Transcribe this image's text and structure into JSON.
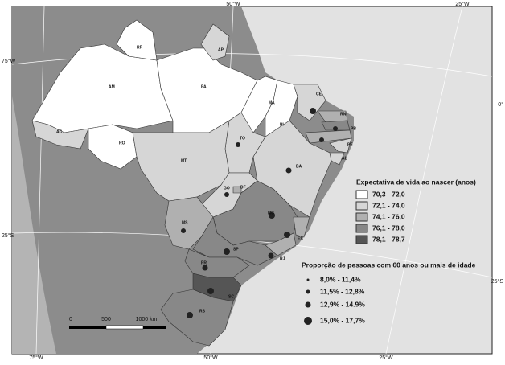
{
  "graticule_labels": [
    "50°W",
    "25°W",
    "75°W",
    "0°",
    "25°S",
    "25°S",
    "75°W",
    "50°W",
    "25°W"
  ],
  "states": [
    "RR",
    "AP",
    "AM",
    "PA",
    "MA",
    "CE",
    "RN",
    "PB",
    "PE",
    "AL",
    "PI",
    "BA",
    "TO",
    "AC",
    "RO",
    "MT",
    "GO",
    "DF",
    "MG",
    "MS",
    "ES",
    "RJ",
    "SP",
    "PR",
    "SC",
    "RS"
  ],
  "legend_life": {
    "title": "Expectativa de vida ao nascer (anos)",
    "entries": [
      "70,3 - 72,0",
      "72,1 - 74,0",
      "74,1 - 76,0",
      "76,1 - 78,0",
      "78,1 - 78,7"
    ]
  },
  "legend_elderly": {
    "title": "Proporção de pessoas com 60 anos ou mais de idade",
    "entries": [
      "8,0% - 11,4%",
      "11,5% - 12,8%",
      "12,9% - 14.9%",
      "15,0% - 17,7%"
    ]
  },
  "scale_bar": {
    "labels": [
      "0",
      "500",
      "1000 km"
    ]
  }
}
